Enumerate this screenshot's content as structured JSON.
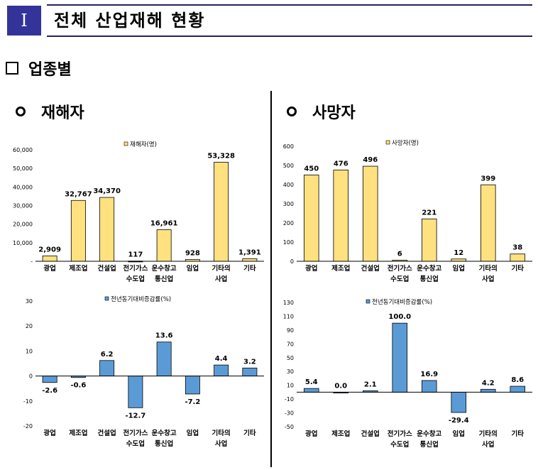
{
  "header": {
    "number": "Ⅰ",
    "title": "전체 산업재해 현황"
  },
  "subsection": {
    "title": "업종별"
  },
  "panels": {
    "left_title": "재해자",
    "right_title": "사망자"
  },
  "chart_data": [
    {
      "type": "bar",
      "title": "",
      "categories": [
        [
          "광업"
        ],
        [
          "제조업"
        ],
        [
          "건설업"
        ],
        [
          "전기가스",
          "수도업"
        ],
        [
          "운수창고",
          "통신업"
        ],
        [
          "임업"
        ],
        [
          "기타의",
          "사업"
        ],
        [
          "기타"
        ]
      ],
      "series": [
        {
          "name": "재해자(명)",
          "values": [
            2909,
            32767,
            34370,
            117,
            16961,
            928,
            53328,
            1391
          ]
        }
      ],
      "value_labels": [
        "2,909",
        "32,767",
        "34,370",
        "117",
        "16,961",
        "928",
        "53,328",
        "1,391"
      ],
      "ylim": [
        0,
        60000
      ],
      "yticks": [
        0,
        10000,
        20000,
        30000,
        40000,
        50000,
        60000
      ],
      "ytick_labels": [
        "-",
        "10,000",
        "20,000",
        "30,000",
        "40,000",
        "50,000",
        "60,000"
      ],
      "color": "#FFE17F",
      "legend": "top-center",
      "grid": false
    },
    {
      "type": "bar",
      "title": "",
      "categories": [
        [
          "광업"
        ],
        [
          "제조업"
        ],
        [
          "건설업"
        ],
        [
          "전기가스",
          "수도업"
        ],
        [
          "운수창고",
          "통신업"
        ],
        [
          "임업"
        ],
        [
          "기타의",
          "사업"
        ],
        [
          "기타"
        ]
      ],
      "series": [
        {
          "name": "사망자(명)",
          "values": [
            450,
            476,
            496,
            6,
            221,
            12,
            399,
            38
          ]
        }
      ],
      "value_labels": [
        "450",
        "476",
        "496",
        "6",
        "221",
        "12",
        "399",
        "38"
      ],
      "ylim": [
        0,
        600
      ],
      "yticks": [
        0,
        100,
        200,
        300,
        400,
        500,
        600
      ],
      "ytick_labels": [
        "0",
        "100",
        "200",
        "300",
        "400",
        "500",
        "600"
      ],
      "color": "#FFE17F",
      "legend": "top-center",
      "grid": false
    },
    {
      "type": "bar",
      "title": "",
      "categories": [
        [
          "광업"
        ],
        [
          "제조업"
        ],
        [
          "건설업"
        ],
        [
          "전기가스",
          "수도업"
        ],
        [
          "운수창고",
          "통신업"
        ],
        [
          "임업"
        ],
        [
          "기타의",
          "사업"
        ],
        [
          "기타"
        ]
      ],
      "series": [
        {
          "name": "전년동기대비증감률(%)",
          "values": [
            -2.6,
            -0.6,
            6.2,
            -12.7,
            13.6,
            -7.2,
            4.4,
            3.2
          ]
        }
      ],
      "value_labels": [
        "-2.6",
        "-0.6",
        "6.2",
        "-12.7",
        "13.6",
        "-7.2",
        "4.4",
        "3.2"
      ],
      "ylim": [
        -20,
        30
      ],
      "yticks": [
        -20,
        -10,
        0,
        10,
        20,
        30
      ],
      "ytick_labels": [
        "-20",
        "-10",
        "0",
        "10",
        "20",
        "30"
      ],
      "color": "#5B9BD5",
      "legend": "top-center",
      "grid": false
    },
    {
      "type": "bar",
      "title": "",
      "categories": [
        [
          "광업"
        ],
        [
          "제조업"
        ],
        [
          "건설업"
        ],
        [
          "전기가스",
          "수도업"
        ],
        [
          "운수창고",
          "통신업"
        ],
        [
          "임업"
        ],
        [
          "기타의",
          "사업"
        ],
        [
          "기타"
        ]
      ],
      "series": [
        {
          "name": "전년동기대비증감률(%)",
          "values": [
            5.4,
            0.0,
            2.1,
            100.0,
            16.9,
            -29.4,
            4.2,
            8.6
          ]
        }
      ],
      "value_labels": [
        "5.4",
        "0.0",
        "2.1",
        "100.0",
        "16.9",
        "-29.4",
        "4.2",
        "8.6"
      ],
      "ylim": [
        -50,
        130
      ],
      "yticks": [
        -50,
        -30,
        -10,
        10,
        30,
        50,
        70,
        90,
        110,
        130
      ],
      "ytick_labels": [
        "-50",
        "-30",
        "-10",
        "10",
        "30",
        "50",
        "70",
        "90",
        "110",
        "130"
      ],
      "color": "#5B9BD5",
      "legend": "top-center",
      "grid": false
    }
  ]
}
